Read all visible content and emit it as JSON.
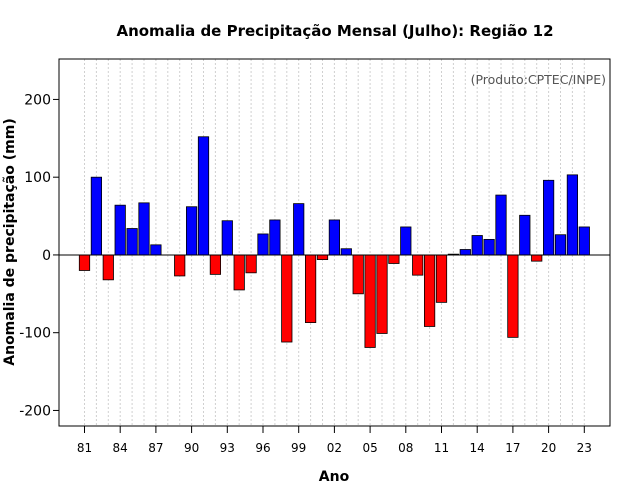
{
  "chart_data": {
    "type": "bar",
    "title": "Anomalia de Precipitação Mensal (Julho): Região 12",
    "annotation": "(Produto:CPTEC/INPE)",
    "xlabel": "Ano",
    "ylabel": "Anomalia de precipitação (mm)",
    "ylim": [
      -220,
      252
    ],
    "yticks": [
      -200,
      -100,
      0,
      100,
      200
    ],
    "ytick_labels": [
      "-200",
      "-100",
      "0",
      "100",
      "200"
    ],
    "xtick_labels": [
      "81",
      "84",
      "87",
      "90",
      "93",
      "96",
      "99",
      "02",
      "05",
      "08",
      "11",
      "14",
      "17",
      "20",
      "23"
    ],
    "xtick_years": [
      1981,
      1984,
      1987,
      1990,
      1993,
      1996,
      1999,
      2002,
      2005,
      2008,
      2011,
      2014,
      2017,
      2020,
      2023
    ],
    "years": [
      1981,
      1982,
      1983,
      1984,
      1985,
      1986,
      1987,
      1988,
      1989,
      1990,
      1991,
      1992,
      1993,
      1994,
      1995,
      1996,
      1997,
      1998,
      1999,
      2000,
      2001,
      2002,
      2003,
      2004,
      2005,
      2006,
      2007,
      2008,
      2009,
      2010,
      2011,
      2012,
      2013,
      2014,
      2015,
      2016,
      2017,
      2018,
      2019,
      2020,
      2021,
      2022,
      2023
    ],
    "values": [
      -20,
      100,
      -32,
      64,
      34,
      67,
      13,
      0,
      -27,
      62,
      152,
      -25,
      44,
      -45,
      -23,
      27,
      45,
      -112,
      66,
      -87,
      -6,
      45,
      8,
      -50,
      -119,
      -101,
      -11,
      36,
      -26,
      -92,
      -61,
      1,
      7,
      25,
      20,
      77,
      -106,
      51,
      -8,
      96,
      26,
      103,
      36
    ],
    "colors": {
      "positive": "#0000ff",
      "negative": "#ff0000",
      "zero_line": "#000000",
      "grid": "#d0d0d0"
    }
  }
}
